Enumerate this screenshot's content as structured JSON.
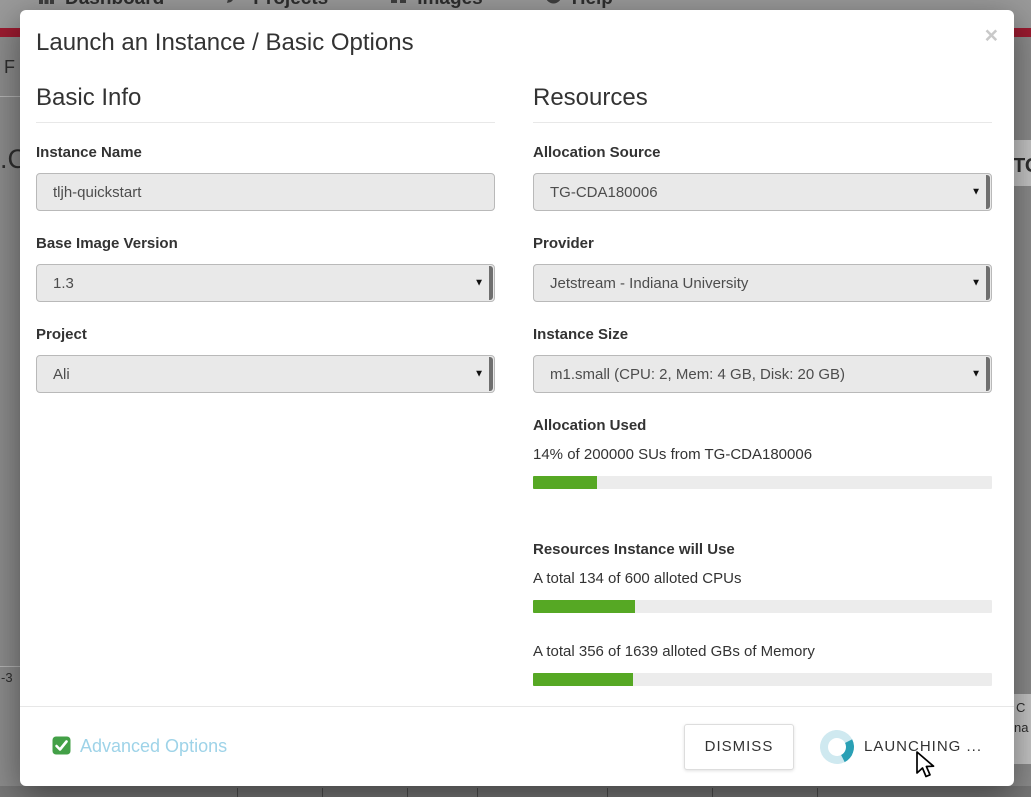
{
  "colors": {
    "accent_maroon": "#9c1b30",
    "progress_green": "#56a824",
    "check_green": "#43a047",
    "link_blue": "#9ed3e8",
    "spinner_light": "#cfe9f0",
    "spinner_dark": "#2aa0b5"
  },
  "backdrop": {
    "nav_items": [
      {
        "icon": "bar-chart-icon",
        "label": "Dashboard"
      },
      {
        "icon": "pencil-icon",
        "label": "Projects"
      },
      {
        "icon": "grid-icon",
        "label": "Images"
      },
      {
        "icon": "question-circle-icon",
        "label": "Help"
      }
    ],
    "fragments": {
      "left_top": "F",
      "left_mid": ".C",
      "right_mid": "TO",
      "left_lower": "-3",
      "right_lower_1": "C",
      "right_lower_2": "na"
    }
  },
  "modal": {
    "title": "Launch an Instance / Basic Options",
    "close_label": "×",
    "sections": {
      "basic_info": {
        "heading": "Basic Info",
        "fields": [
          {
            "label": "Instance Name",
            "type": "text",
            "value": "tljh-quickstart"
          },
          {
            "label": "Base Image Version",
            "type": "select",
            "value": "1.3"
          },
          {
            "label": "Project",
            "type": "select",
            "value": "Ali"
          }
        ]
      },
      "resources": {
        "heading": "Resources",
        "fields": [
          {
            "label": "Allocation Source",
            "type": "select",
            "value": "TG-CDA180006"
          },
          {
            "label": "Provider",
            "type": "select",
            "value": "Jetstream - Indiana University"
          },
          {
            "label": "Instance Size",
            "type": "select",
            "value": "m1.small (CPU: 2, Mem: 4 GB, Disk: 20 GB)"
          }
        ],
        "allocation_used": {
          "heading": "Allocation Used",
          "text": "14% of 200000 SUs from TG-CDA180006",
          "percent": 14
        },
        "instance_resources": {
          "heading": "Resources Instance will Use",
          "bars": [
            {
              "text": "A total 134 of 600 alloted CPUs",
              "used": 134,
              "total": 600,
              "percent": 22.3
            },
            {
              "text": "A total 356 of 1639 alloted GBs of Memory",
              "used": 356,
              "total": 1639,
              "percent": 21.7
            }
          ]
        }
      }
    },
    "footer": {
      "advanced_options_label": "Advanced Options",
      "dismiss_label": "DISMISS",
      "launch_label": "LAUNCHING ..."
    }
  }
}
